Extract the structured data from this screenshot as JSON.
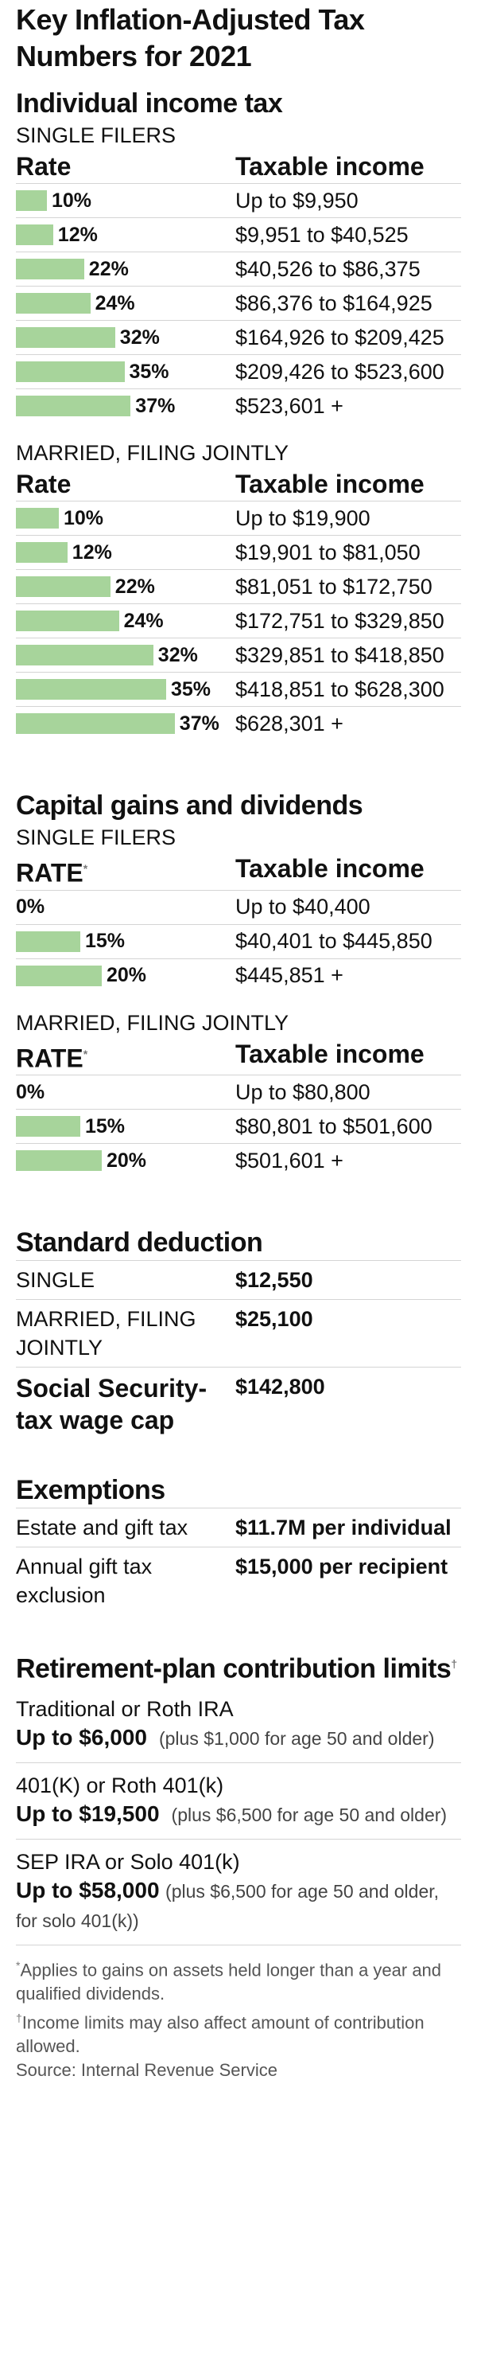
{
  "title": "Key Inflation-Adjusted Tax Numbers for 2021",
  "income_tax": {
    "heading": "Individual income tax",
    "groups": [
      {
        "label": "SINGLE FILERS",
        "col_rate": "Rate",
        "col_income": "Taxable income",
        "rows": [
          {
            "rate": "10%",
            "value": 10,
            "income": "Up to $9,950"
          },
          {
            "rate": "12%",
            "value": 12,
            "income": "$9,951 to $40,525"
          },
          {
            "rate": "22%",
            "value": 22,
            "income": "$40,526 to $86,375"
          },
          {
            "rate": "24%",
            "value": 24,
            "income": "$86,376 to $164,925"
          },
          {
            "rate": "32%",
            "value": 32,
            "income": "$164,926 to $209,425"
          },
          {
            "rate": "35%",
            "value": 35,
            "income": "$209,426 to $523,600"
          },
          {
            "rate": "37%",
            "value": 37,
            "income": "$523,601 +"
          }
        ]
      },
      {
        "label": "MARRIED, FILING JOINTLY",
        "col_rate": "Rate",
        "col_income": "Taxable income",
        "rows": [
          {
            "rate": "10%",
            "value": 10,
            "income": "Up to $19,900"
          },
          {
            "rate": "12%",
            "value": 12,
            "income": "$19,901 to $81,050"
          },
          {
            "rate": "22%",
            "value": 22,
            "income": "$81,051 to $172,750"
          },
          {
            "rate": "24%",
            "value": 24,
            "income": "$172,751 to $329,850"
          },
          {
            "rate": "32%",
            "value": 32,
            "income": "$329,851 to $418,850"
          },
          {
            "rate": "35%",
            "value": 35,
            "income": "$418,851 to $628,300"
          },
          {
            "rate": "37%",
            "value": 37,
            "income": "$628,301 +"
          }
        ]
      }
    ]
  },
  "capital_gains": {
    "heading": "Capital gains and dividends",
    "groups": [
      {
        "label": "SINGLE FILERS",
        "col_rate": "RATE",
        "col_rate_mark": "*",
        "col_income": "Taxable income",
        "rows": [
          {
            "rate": "0%",
            "value": 0,
            "income": "Up to $40,400"
          },
          {
            "rate": "15%",
            "value": 15,
            "income": "$40,401 to $445,850"
          },
          {
            "rate": "20%",
            "value": 20,
            "income": "$445,851 +"
          }
        ]
      },
      {
        "label": "MARRIED, FILING JOINTLY",
        "col_rate": "RATE",
        "col_rate_mark": "*",
        "col_income": "Taxable income",
        "rows": [
          {
            "rate": "0%",
            "value": 0,
            "income": "Up to $80,800"
          },
          {
            "rate": "15%",
            "value": 15,
            "income": "$80,801 to $501,600"
          },
          {
            "rate": "20%",
            "value": 20,
            "income": "$501,601 +"
          }
        ]
      }
    ]
  },
  "standard_deduction": {
    "heading": "Standard deduction",
    "single_label": "SINGLE",
    "single_value": "$12,550",
    "married_label": "MARRIED, FILING JOINTLY",
    "married_value": "$25,100"
  },
  "social_security": {
    "label": "Social Security-tax wage cap",
    "value": "$142,800"
  },
  "exemptions": {
    "heading": "Exemptions",
    "estate_label": "Estate and gift tax",
    "estate_value": "$11.7M per individual",
    "gift_label": "Annual gift tax exclusion",
    "gift_value": "$15,000 per recipient"
  },
  "retirement": {
    "heading": "Retirement-plan contribution limits",
    "heading_mark": "†",
    "items": [
      {
        "plan": "Traditional or Roth IRA",
        "limit": "Up to $6,000",
        "note": "(plus $1,000 for age 50 and older)"
      },
      {
        "plan": "401(K) or Roth 401(k)",
        "limit": "Up to $19,500",
        "note": "(plus $6,500 for age 50 and older)"
      },
      {
        "plan": "SEP IRA or Solo 401(k)",
        "limit": "Up to $58,000",
        "note": "(plus $6,500 for age 50 and older, for solo 401(k))"
      }
    ]
  },
  "footnotes": {
    "asterisk_mark": "*",
    "asterisk": "Applies to gains on assets held longer than a year and qualified dividends.",
    "dagger_mark": "†",
    "dagger": "Income limits may also affect amount of contribution allowed.",
    "source": "Source: Internal Revenue Service"
  },
  "colors": {
    "bar": "#a7d49b",
    "rule": "#d4d4d4"
  }
}
